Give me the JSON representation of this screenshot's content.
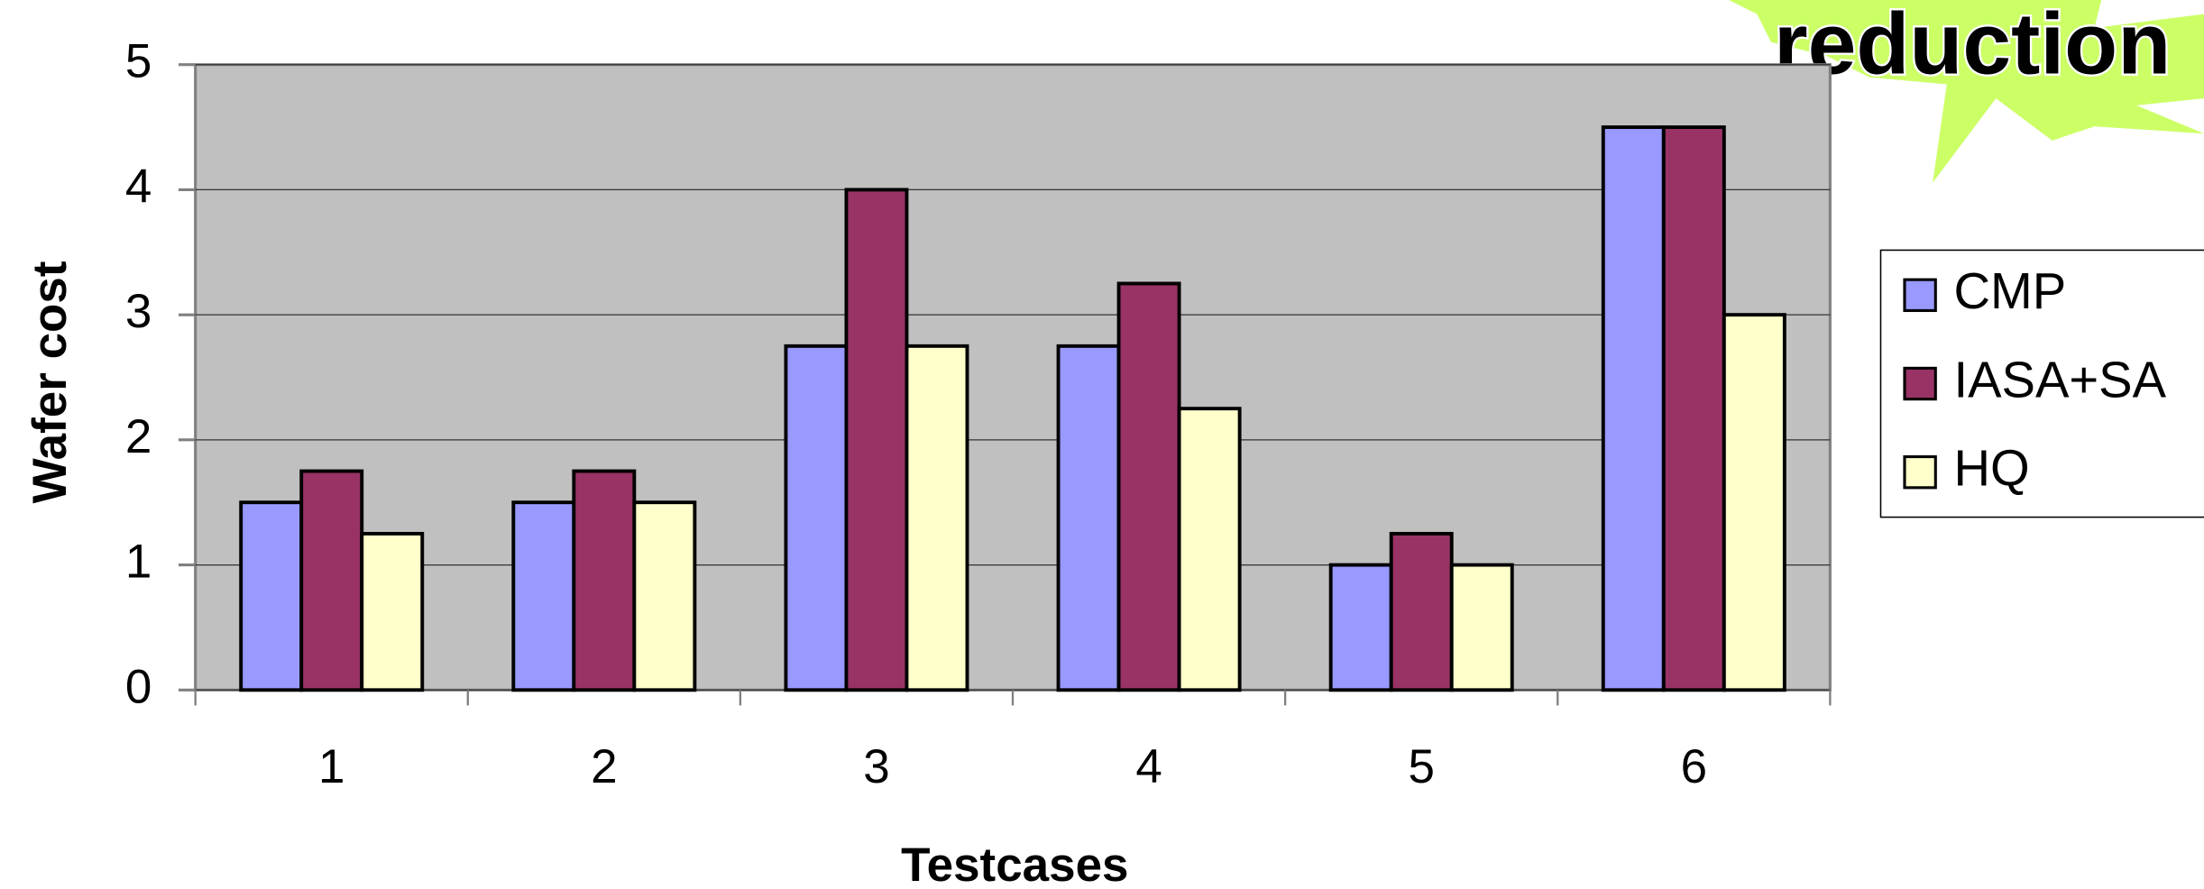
{
  "chart_data": {
    "type": "bar",
    "title": "reduction",
    "x_label": "Testcases",
    "y_label": "Wafer cost",
    "categories": [
      "1",
      "2",
      "3",
      "4",
      "5",
      "6"
    ],
    "series": [
      {
        "name": "CMP",
        "color": "#9999ff",
        "values": [
          1.5,
          1.5,
          2.75,
          2.75,
          1,
          4.5
        ]
      },
      {
        "name": "IASA+SA",
        "color": "#993366",
        "values": [
          1.75,
          1.75,
          4,
          3.25,
          1.25,
          4.5
        ]
      },
      {
        "name": "HQ",
        "color": "#ffffcc",
        "values": [
          1.25,
          1.5,
          2.75,
          2.25,
          1,
          3
        ]
      }
    ],
    "ylim": [
      0,
      5
    ],
    "yticks": [
      0,
      1,
      2,
      3,
      4,
      5
    ],
    "grid": true,
    "legend": "right"
  }
}
